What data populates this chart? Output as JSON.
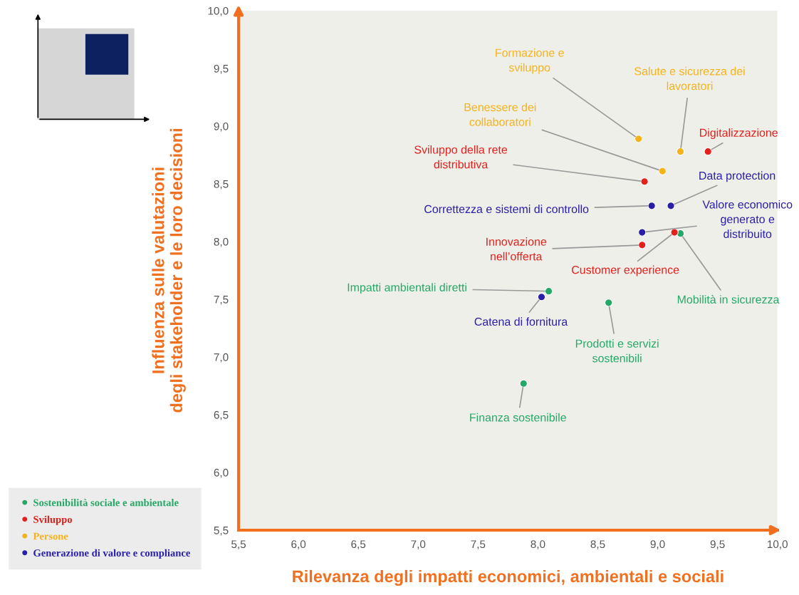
{
  "chart_data": {
    "type": "scatter",
    "xlabel": "Rilevanza degli impatti economici, ambientali e sociali",
    "ylabel": "Influenza sulle valutazioni\ndegli stakeholder e le loro decisioni",
    "xlim": [
      5.5,
      10.0
    ],
    "ylim": [
      5.5,
      10.0
    ],
    "xticks": [
      {
        "value": 5.5,
        "label": "5,5"
      },
      {
        "value": 6.0,
        "label": "6,0"
      },
      {
        "value": 6.5,
        "label": "6,5"
      },
      {
        "value": 7.0,
        "label": "7,0"
      },
      {
        "value": 7.5,
        "label": "7,5"
      },
      {
        "value": 8.0,
        "label": "8,0"
      },
      {
        "value": 8.5,
        "label": "8,5"
      },
      {
        "value": 9.0,
        "label": "9,0"
      },
      {
        "value": 9.5,
        "label": "9,5"
      },
      {
        "value": 10.0,
        "label": "10,0"
      }
    ],
    "yticks": [
      {
        "value": 5.5,
        "label": "5,5"
      },
      {
        "value": 6.0,
        "label": "6,0"
      },
      {
        "value": 6.5,
        "label": "6,5"
      },
      {
        "value": 7.0,
        "label": "7,0"
      },
      {
        "value": 7.5,
        "label": "7,5"
      },
      {
        "value": 8.0,
        "label": "8,0"
      },
      {
        "value": 8.5,
        "label": "8,5"
      },
      {
        "value": 9.0,
        "label": "9,0"
      },
      {
        "value": 9.5,
        "label": "9,5"
      },
      {
        "value": 10.0,
        "label": "10,0"
      }
    ],
    "grid": false,
    "legend": "bottom left",
    "marker": "circle",
    "series": [
      {
        "name": "Sostenibilità sociale e ambientale",
        "color": "#25a765",
        "x": [
          9.19,
          8.09,
          8.59,
          7.88
        ],
        "values": [
          8.07,
          7.57,
          7.47,
          6.77
        ]
      },
      {
        "name": "Sviluppo",
        "color": "#e3201b",
        "x": [
          9.42,
          8.89,
          9.14,
          8.87
        ],
        "values": [
          8.78,
          8.52,
          8.08,
          7.97
        ]
      },
      {
        "name": "Persone",
        "color": "#f5b21a",
        "x": [
          8.84,
          9.19,
          9.04
        ],
        "values": [
          8.89,
          8.78,
          8.61
        ]
      },
      {
        "name": "Generazione di valore e compliance",
        "color": "#2b1fa8",
        "x": [
          9.11,
          8.95,
          8.87,
          8.03
        ],
        "values": [
          8.31,
          8.31,
          8.08,
          7.52
        ]
      }
    ],
    "annotations": [
      {
        "text": "Formazione e\nsviluppo",
        "x": 8.84,
        "y": 8.89
      },
      {
        "text": "Salute e sicurezza dei\nlavoratori",
        "x": 9.19,
        "y": 8.78
      },
      {
        "text": "Benessere dei\ncollaboratori",
        "x": 9.04,
        "y": 8.61
      },
      {
        "text": "Digitalizzazione",
        "x": 9.42,
        "y": 8.78
      },
      {
        "text": "Sviluppo della rete\ndistributiva",
        "x": 8.89,
        "y": 8.52
      },
      {
        "text": "Data protection",
        "x": 9.11,
        "y": 8.31
      },
      {
        "text": "Correttezza e sistemi di controllo",
        "x": 8.95,
        "y": 8.31
      },
      {
        "text": "Valore economico\ngenerato e\ndistribuito",
        "x": 8.87,
        "y": 8.08
      },
      {
        "text": "Customer experience",
        "x": 9.14,
        "y": 8.08
      },
      {
        "text": "Mobilità in sicurezza",
        "x": 9.19,
        "y": 8.07
      },
      {
        "text": "Innovazione\nnell’offerta",
        "x": 8.87,
        "y": 7.97
      },
      {
        "text": "Impatti ambientali diretti",
        "x": 8.09,
        "y": 7.57
      },
      {
        "text": "Catena di fornitura",
        "x": 8.03,
        "y": 7.52
      },
      {
        "text": "Prodotti e servizi\nsostenibili",
        "x": 8.59,
        "y": 7.47
      },
      {
        "text": "Finanza sostenibile",
        "x": 7.88,
        "y": 6.77
      }
    ]
  }
}
